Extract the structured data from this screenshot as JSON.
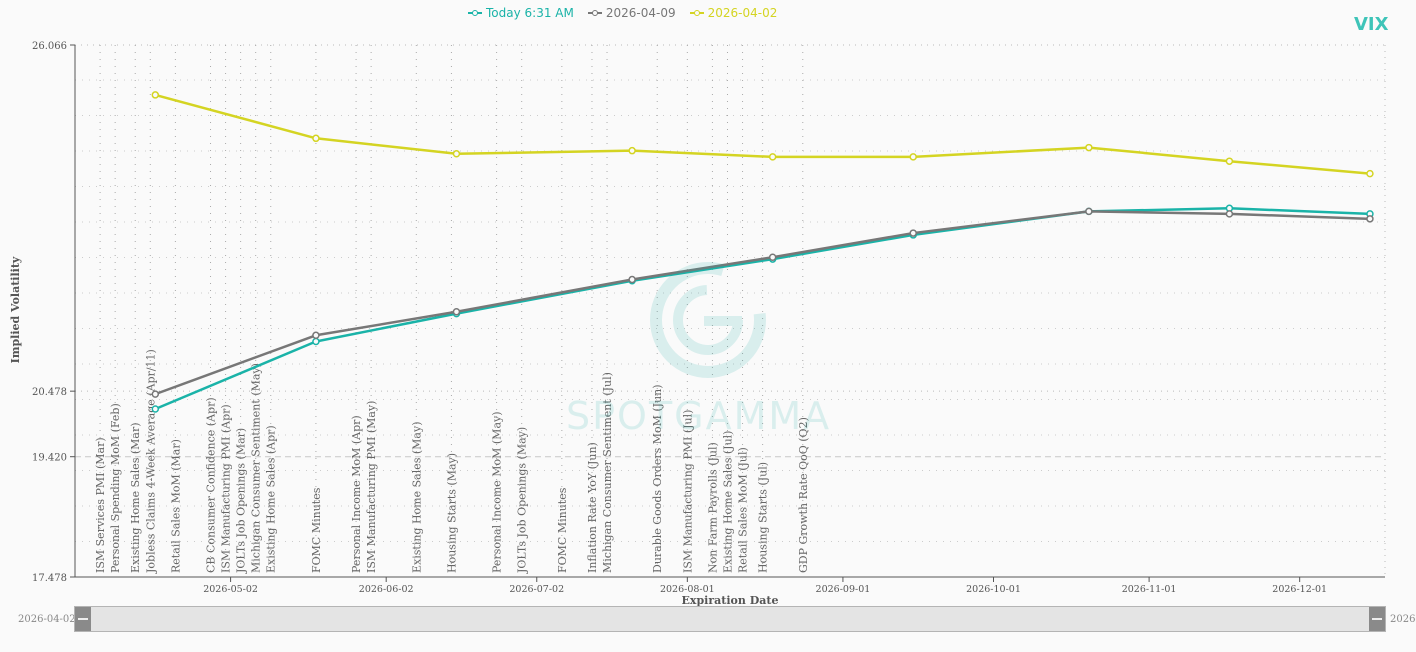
{
  "legend": {
    "today": "Today 6:31 AM",
    "d0409": "2026-04-09",
    "d0402": "2026-04-02"
  },
  "index_label": "VIX",
  "watermark": "SPOTGAMMA",
  "colors": {
    "today": "#1ab3a8",
    "d0409": "#777777",
    "d0402": "#d4d422",
    "marker_line": "#aaaaaa",
    "axis": "#555555"
  },
  "slider": {
    "start_label": "2026-04-02",
    "end_label": "2026-"
  },
  "chart_data": {
    "type": "line",
    "xlabel": "Expiration Date",
    "ylabel": "Implied Volatility",
    "y_ticks": [
      "17.478",
      "19.420",
      "20.478",
      "26.066"
    ],
    "ylim": [
      17.478,
      26.066
    ],
    "reference_line": 19.42,
    "x_ticks": [
      "2026-05-02",
      "2026-06-02",
      "2026-07-02",
      "2026-08-01",
      "2026-09-01",
      "2026-10-01",
      "2026-11-01",
      "2026-12-01"
    ],
    "xlim": [
      "2026-04-01",
      "2026-12-18"
    ],
    "grid": true,
    "legend_position": "top-center",
    "series": [
      {
        "key": "today",
        "name": "Today 6:31 AM",
        "x": [
          "2026-04-17",
          "2026-05-19",
          "2026-06-16",
          "2026-07-21",
          "2026-08-18",
          "2026-09-15",
          "2026-10-20",
          "2026-11-17",
          "2026-12-15"
        ],
        "values": [
          20.19,
          21.28,
          21.73,
          22.26,
          22.61,
          23.0,
          23.38,
          23.43,
          23.34
        ]
      },
      {
        "key": "d0409",
        "name": "2026-04-09",
        "x": [
          "2026-04-17",
          "2026-05-19",
          "2026-06-16",
          "2026-07-21",
          "2026-08-18",
          "2026-09-15",
          "2026-10-20",
          "2026-11-17",
          "2026-12-15"
        ],
        "values": [
          20.43,
          21.38,
          21.76,
          22.28,
          22.64,
          23.03,
          23.38,
          23.34,
          23.26
        ]
      },
      {
        "key": "d0402",
        "name": "2026-04-02",
        "x": [
          "2026-04-17",
          "2026-05-19",
          "2026-06-16",
          "2026-07-21",
          "2026-08-18",
          "2026-09-15",
          "2026-10-20",
          "2026-11-17",
          "2026-12-15"
        ],
        "values": [
          25.26,
          24.56,
          24.31,
          24.36,
          24.26,
          24.26,
          24.41,
          24.19,
          23.99
        ]
      }
    ],
    "events": [
      {
        "label": "ISM Services PMI (Mar)",
        "date": "2026-04-06"
      },
      {
        "label": "Personal Spending MoM (Feb)",
        "date": "2026-04-09"
      },
      {
        "label": "Existing Home Sales (Mar)",
        "date": "2026-04-13"
      },
      {
        "label": "Jobless Claims 4-Week Average (Apr/11)",
        "date": "2026-04-16"
      },
      {
        "label": "Retail Sales MoM (Mar)",
        "date": "2026-04-21"
      },
      {
        "label": "CB Consumer Confidence (Apr)",
        "date": "2026-04-28"
      },
      {
        "label": "ISM Manufacturing PMI (Apr)",
        "date": "2026-05-01"
      },
      {
        "label": "JOLTs Job Openings (Mar)",
        "date": "2026-05-04"
      },
      {
        "label": "Michigan Consumer Sentiment (May)",
        "date": "2026-05-07"
      },
      {
        "label": "Existing Home Sales (Apr)",
        "date": "2026-05-10"
      },
      {
        "label": "FOMC Minutes",
        "date": "2026-05-19"
      },
      {
        "label": "Personal Income MoM (Apr)",
        "date": "2026-05-27"
      },
      {
        "label": "ISM Manufacturing PMI (May)",
        "date": "2026-05-30"
      },
      {
        "label": "Existing Home Sales (May)",
        "date": "2026-06-08"
      },
      {
        "label": "Housing Starts (May)",
        "date": "2026-06-15"
      },
      {
        "label": "Personal Income MoM (May)",
        "date": "2026-06-24"
      },
      {
        "label": "JOLTs Job Openings (May)",
        "date": "2026-06-29"
      },
      {
        "label": "FOMC Minutes",
        "date": "2026-07-07"
      },
      {
        "label": "Inflation Rate YoY (Jun)",
        "date": "2026-07-13"
      },
      {
        "label": "Michigan Consumer Sentiment (Jul)",
        "date": "2026-07-16"
      },
      {
        "label": "Durable Goods Orders MoM (Jun)",
        "date": "2026-07-26"
      },
      {
        "label": "ISM Manufacturing PMI (Jul)",
        "date": "2026-08-01"
      },
      {
        "label": "Non Farm Payrolls (Jul)",
        "date": "2026-08-06"
      },
      {
        "label": "Existing Home Sales (Jul)",
        "date": "2026-08-09"
      },
      {
        "label": "Retail Sales MoM (Jul)",
        "date": "2026-08-12"
      },
      {
        "label": "Housing Starts (Jul)",
        "date": "2026-08-16"
      },
      {
        "label": "GDP Growth Rate QoQ (Q2)",
        "date": "2026-08-24"
      }
    ]
  }
}
